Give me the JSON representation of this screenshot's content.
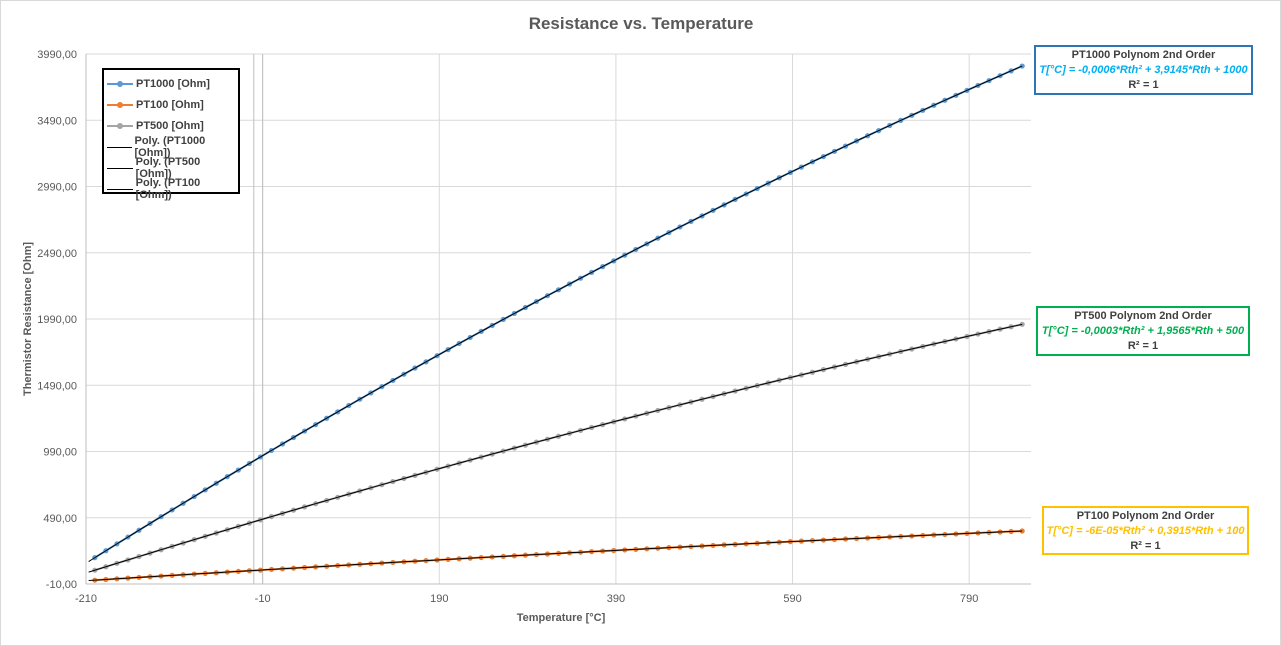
{
  "chart_data": {
    "type": "scatter",
    "title": "Resistance vs. Temperature",
    "xlabel": "Temperature [°C]",
    "ylabel": "Thermistor Resistance [Ohm]",
    "xlim": [
      -210,
      860
    ],
    "ylim": [
      -10,
      3990
    ],
    "xticks": [
      -210,
      -10,
      190,
      390,
      590,
      790
    ],
    "yticks": [
      -10,
      490,
      990,
      1490,
      1990,
      2490,
      2990,
      3490,
      3990
    ],
    "xtick_labels": [
      "-210",
      "-10",
      "190",
      "390",
      "590",
      "790"
    ],
    "ytick_labels": [
      "-10,00",
      "490,00",
      "990,00",
      "1490,00",
      "1990,00",
      "2490,00",
      "2990,00",
      "3490,00",
      "3990,00"
    ],
    "grid": true,
    "legend_position": "top-left",
    "series": [
      {
        "name": "PT1000 [Ohm]",
        "color": "#5b9bd5",
        "x": [
          -200,
          -100,
          0,
          100,
          200,
          300,
          400,
          500,
          600,
          700,
          800,
          850
        ],
        "y": [
          185,
          603,
          1000,
          1385,
          1759,
          2121,
          2471,
          2809,
          3136,
          3450,
          3753,
          3900
        ]
      },
      {
        "name": "PT100 [Ohm]",
        "color": "#ed7d31",
        "x": [
          -200,
          -100,
          0,
          100,
          200,
          300,
          400,
          500,
          600,
          700,
          800,
          850
        ],
        "y": [
          18.5,
          60.3,
          100,
          138.5,
          175.9,
          212.1,
          247.1,
          280.9,
          313.6,
          345.0,
          375.3,
          390.0
        ]
      },
      {
        "name": "PT500 [Ohm]",
        "color": "#a5a5a5",
        "x": [
          -200,
          -100,
          0,
          100,
          200,
          300,
          400,
          500,
          600,
          700,
          800,
          850
        ],
        "y": [
          92,
          301,
          500,
          692,
          880,
          1060,
          1235,
          1405,
          1568,
          1725,
          1877,
          1950
        ]
      },
      {
        "name": "Poly. (PT1000 [Ohm])",
        "color": "#000000",
        "fit_of": "PT1000 [Ohm]"
      },
      {
        "name": "Poly. (PT500 [Ohm])",
        "color": "#000000",
        "fit_of": "PT500 [Ohm]"
      },
      {
        "name": "Poly. (PT100 [Ohm])",
        "color": "#000000",
        "fit_of": "PT100 [Ohm]"
      }
    ],
    "vertical_lines": [
      -20,
      -10
    ],
    "annotations": [
      {
        "title": "PT1000 Polynom 2nd Order",
        "equation": "T[°C] = -0,0006*Rth² + 3,9145*Rth + 1000",
        "r2": "R² = 1",
        "color": "#00b0f0",
        "border": "#2e75b6"
      },
      {
        "title": "PT500 Polynom 2nd Order",
        "equation": "T[°C] = -0,0003*Rth² + 1,9565*Rth + 500",
        "r2": "R² = 1",
        "color": "#00b050",
        "border": "#00b050"
      },
      {
        "title": "PT100 Polynom 2nd Order",
        "equation": "T[°C] = -6E-05*Rth² + 0,3915*Rth + 100",
        "r2": "R² = 1",
        "color": "#ffc000",
        "border": "#ffc000"
      }
    ]
  }
}
